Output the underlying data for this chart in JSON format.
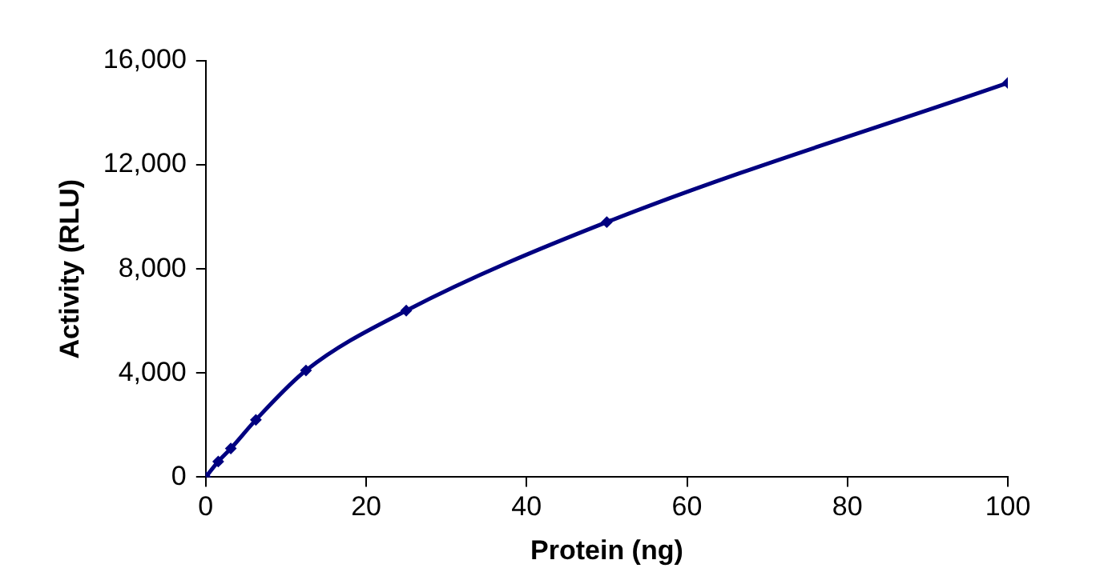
{
  "chart_data": {
    "type": "line",
    "xlabel": "Protein (ng)",
    "ylabel": "Activity (RLU)",
    "x": [
      0,
      1.56,
      3.125,
      6.25,
      12.5,
      25,
      50,
      100
    ],
    "series": [
      {
        "color": "#000080",
        "values": [
          0,
          600,
          1100,
          2200,
          4100,
          6400,
          9800,
          15150
        ]
      }
    ],
    "xlim": [
      0,
      100
    ],
    "xticks": [
      0,
      20,
      40,
      60,
      80,
      100
    ],
    "ylim": [
      0,
      16000
    ],
    "yticks": [
      {
        "value": 0,
        "label": "0"
      },
      {
        "value": 4000,
        "label": "4,000"
      },
      {
        "value": 8000,
        "label": "8,000"
      },
      {
        "value": 12000,
        "label": "12,000"
      },
      {
        "value": 16000,
        "label": "16,000"
      }
    ],
    "grid": false,
    "legend": false,
    "marker": "diamond",
    "line_style": "solid"
  }
}
